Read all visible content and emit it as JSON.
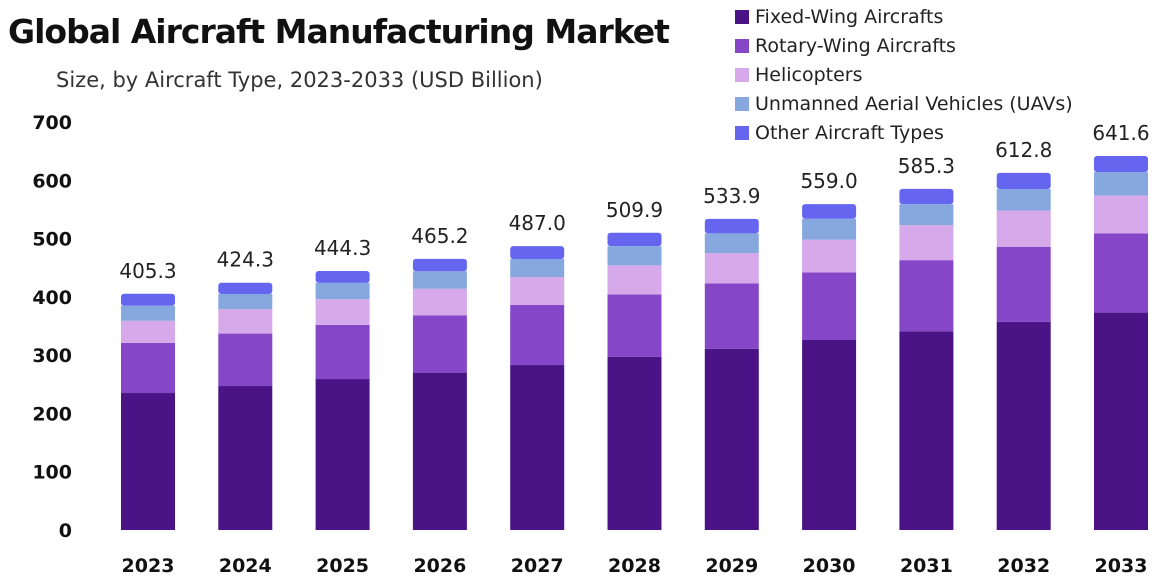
{
  "title": "Global Aircraft Manufacturing Market",
  "subtitle": "Size, by Aircraft Type, 2023-2033 (USD Billion)",
  "chart_data": {
    "type": "bar",
    "stacked": true,
    "categories": [
      "2023",
      "2024",
      "2025",
      "2026",
      "2027",
      "2028",
      "2029",
      "2030",
      "2031",
      "2032",
      "2033"
    ],
    "series": [
      {
        "name": "Fixed-Wing Aircrafts",
        "color": "#4a1486",
        "values": [
          235,
          247,
          259,
          270,
          283,
          297,
          311,
          326,
          341,
          357,
          373
        ]
      },
      {
        "name": "Rotary-Wing Aircrafts",
        "color": "#8646c8",
        "values": [
          86,
          90,
          93,
          98,
          103,
          107,
          112,
          116,
          122,
          129,
          136
        ]
      },
      {
        "name": "Helicopters",
        "color": "#d6aaea",
        "values": [
          38,
          42,
          44,
          46,
          48,
          50,
          52,
          56,
          60,
          62,
          65
        ]
      },
      {
        "name": "Unmanned Aerial Vehicles (UAVs)",
        "color": "#86a8de",
        "values": [
          26,
          26,
          28,
          30,
          31,
          33,
          34,
          36,
          36,
          37,
          40
        ]
      },
      {
        "name": "Other Aircraft Types",
        "color": "#6565f0",
        "values": [
          20.3,
          19.3,
          20.3,
          21.2,
          22.0,
          22.9,
          24.9,
          25.0,
          26.3,
          27.8,
          27.6
        ]
      }
    ],
    "totals": [
      "405.3",
      "424.3",
      "444.3",
      "465.2",
      "487.0",
      "509.9",
      "533.9",
      "559.0",
      "585.3",
      "612.8",
      "641.6"
    ],
    "yticks": [
      "0",
      "100",
      "200",
      "300",
      "400",
      "500",
      "600",
      "700"
    ],
    "ylim": [
      0,
      700
    ],
    "grid": false,
    "legend": "top-right"
  }
}
